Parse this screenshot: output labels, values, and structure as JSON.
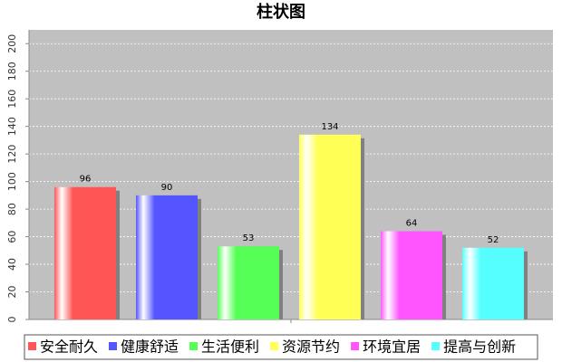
{
  "chart_data": {
    "type": "bar",
    "title": "柱状图",
    "categories": [
      null
    ],
    "series": [
      {
        "name": "安全耐久",
        "color": "#ff5555",
        "values": [
          96
        ]
      },
      {
        "name": "健康舒适",
        "color": "#5555ff",
        "values": [
          90
        ]
      },
      {
        "name": "生活便利",
        "color": "#55ff55",
        "values": [
          53
        ]
      },
      {
        "name": "资源节约",
        "color": "#ffff55",
        "values": [
          134
        ]
      },
      {
        "name": "环境宜居",
        "color": "#ff55ff",
        "values": [
          64
        ]
      },
      {
        "name": "提高与创新",
        "color": "#55ffff",
        "values": [
          52
        ]
      }
    ],
    "ylim": [
      0,
      210
    ],
    "yticks": [
      0,
      20,
      40,
      60,
      80,
      100,
      120,
      140,
      160,
      180,
      200
    ],
    "grid": true
  }
}
